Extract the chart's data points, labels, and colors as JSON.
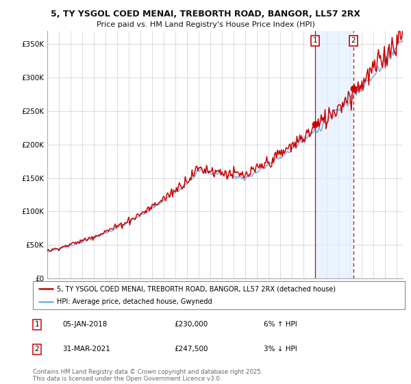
{
  "title_line1": "5, TY YSGOL COED MENAI, TREBORTH ROAD, BANGOR, LL57 2RX",
  "title_line2": "Price paid vs. HM Land Registry's House Price Index (HPI)",
  "yticks": [
    0,
    50000,
    100000,
    150000,
    200000,
    250000,
    300000,
    350000
  ],
  "ytick_labels": [
    "£0",
    "£50K",
    "£100K",
    "£150K",
    "£200K",
    "£250K",
    "£300K",
    "£350K"
  ],
  "sale1_date": "05-JAN-2018",
  "sale1_price": 230000,
  "sale1_note": "6% ↑ HPI",
  "sale1_year": 2018.0,
  "sale2_date": "31-MAR-2021",
  "sale2_price": 247500,
  "sale2_note": "3% ↓ HPI",
  "sale2_year": 2021.25,
  "legend_property": "5, TY YSGOL COED MENAI, TREBORTH ROAD, BANGOR, LL57 2RX (detached house)",
  "legend_hpi": "HPI: Average price, detached house, Gwynedd",
  "footer": "Contains HM Land Registry data © Crown copyright and database right 2025.\nThis data is licensed under the Open Government Licence v3.0.",
  "property_color": "#cc0000",
  "hpi_color": "#7aade0",
  "shade_color": "#ddeeff",
  "background_color": "#ffffff",
  "grid_color": "#cccccc",
  "vline_color": "#cc0000",
  "annotation_box_color": "#cc0000"
}
